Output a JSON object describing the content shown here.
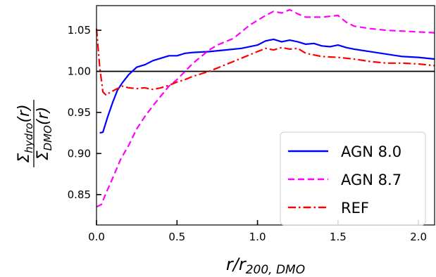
{
  "chart_data": {
    "type": "line",
    "xlabel": "r/r_{200,DMO}",
    "ylabel_num": "Σ_{hydro}(r)",
    "ylabel_den": "Σ_{DMO}(r)",
    "xlim": [
      0.0,
      2.1
    ],
    "ylim": [
      0.813,
      1.08
    ],
    "x_ticks": [
      0.0,
      0.5,
      1.0,
      1.5,
      2.0
    ],
    "x_tick_labels": [
      "0.0",
      "0.5",
      "1.0",
      "1.5",
      "2.0"
    ],
    "y_ticks": [
      0.85,
      0.9,
      0.95,
      1.0,
      1.05
    ],
    "y_tick_labels": [
      "0.85",
      "0.90",
      "0.95",
      "1.00",
      "1.05"
    ],
    "reference_line": 1.0,
    "legend_position": "lower-right",
    "grid": false,
    "series": [
      {
        "name": "AGN 8.0",
        "color": "#0000ff",
        "style": "solid",
        "x": [
          0.02,
          0.04,
          0.07,
          0.1,
          0.13,
          0.16,
          0.2,
          0.25,
          0.3,
          0.35,
          0.4,
          0.45,
          0.5,
          0.55,
          0.6,
          0.7,
          0.8,
          0.9,
          1.0,
          1.05,
          1.1,
          1.15,
          1.2,
          1.25,
          1.3,
          1.35,
          1.4,
          1.45,
          1.5,
          1.55,
          1.6,
          1.7,
          1.8,
          1.9,
          2.0,
          2.1
        ],
        "values": [
          0.925,
          0.926,
          0.945,
          0.962,
          0.977,
          0.986,
          0.996,
          1.005,
          1.008,
          1.013,
          1.016,
          1.019,
          1.019,
          1.022,
          1.023,
          1.024,
          1.026,
          1.028,
          1.032,
          1.037,
          1.039,
          1.036,
          1.038,
          1.036,
          1.033,
          1.034,
          1.031,
          1.03,
          1.032,
          1.029,
          1.027,
          1.024,
          1.021,
          1.018,
          1.017,
          1.015
        ]
      },
      {
        "name": "AGN 8.7",
        "color": "#ff00ff",
        "style": "dashed",
        "x": [
          0.0,
          0.03,
          0.06,
          0.1,
          0.15,
          0.2,
          0.25,
          0.3,
          0.35,
          0.4,
          0.45,
          0.5,
          0.55,
          0.6,
          0.65,
          0.7,
          0.75,
          0.8,
          0.85,
          0.9,
          0.95,
          1.0,
          1.05,
          1.1,
          1.15,
          1.2,
          1.25,
          1.3,
          1.4,
          1.5,
          1.55,
          1.6,
          1.7,
          1.8,
          1.9,
          2.0,
          2.1
        ],
        "values": [
          0.835,
          0.838,
          0.852,
          0.87,
          0.893,
          0.91,
          0.93,
          0.945,
          0.958,
          0.97,
          0.982,
          0.99,
          1.0,
          1.01,
          1.018,
          1.026,
          1.032,
          1.036,
          1.04,
          1.048,
          1.056,
          1.062,
          1.068,
          1.073,
          1.071,
          1.075,
          1.07,
          1.066,
          1.066,
          1.068,
          1.06,
          1.055,
          1.052,
          1.05,
          1.049,
          1.048,
          1.047
        ]
      },
      {
        "name": "REF",
        "color": "#ff0000",
        "style": "dashdot",
        "x": [
          0.0,
          0.02,
          0.04,
          0.06,
          0.08,
          0.1,
          0.13,
          0.16,
          0.2,
          0.25,
          0.3,
          0.35,
          0.4,
          0.45,
          0.5,
          0.55,
          0.6,
          0.65,
          0.7,
          0.75,
          0.8,
          0.85,
          0.9,
          0.95,
          1.0,
          1.05,
          1.1,
          1.15,
          1.2,
          1.25,
          1.3,
          1.4,
          1.5,
          1.6,
          1.7,
          1.8,
          1.9,
          2.0,
          2.1
        ],
        "values": [
          1.052,
          1.005,
          0.975,
          0.971,
          0.974,
          0.976,
          0.979,
          0.982,
          0.98,
          0.979,
          0.98,
          0.978,
          0.98,
          0.983,
          0.987,
          0.99,
          0.994,
          0.997,
          1.0,
          1.004,
          1.008,
          1.012,
          1.016,
          1.02,
          1.024,
          1.028,
          1.026,
          1.029,
          1.027,
          1.028,
          1.022,
          1.018,
          1.017,
          1.015,
          1.012,
          1.01,
          1.01,
          1.009,
          1.007
        ]
      }
    ]
  }
}
